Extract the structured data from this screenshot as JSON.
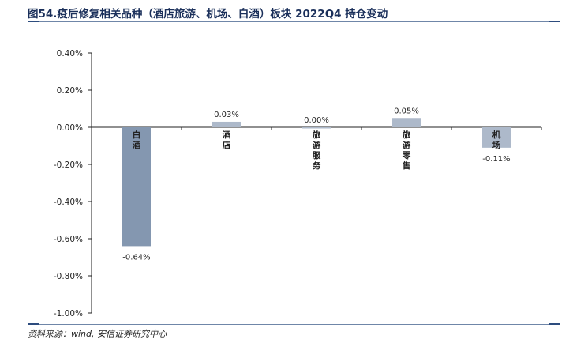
{
  "title": "图54.疫后修复相关品种（酒店旅游、机场、白酒）板块 2022Q4 持仓变动",
  "source": "资料来源：wind, 安信证券研究中心",
  "colors": {
    "dark_bar": "#8497b0",
    "light_bar": "#adb9ca",
    "header_line": "#2d4c7e"
  },
  "chart_data": {
    "type": "bar",
    "title": "疫后修复相关品种（酒店旅游、机场、白酒）板块 2022Q4 持仓变动",
    "xlabel": "",
    "ylabel": "",
    "categories": [
      "白酒",
      "酒店",
      "旅游服务",
      "旅游零售",
      "机场"
    ],
    "values": [
      -0.64,
      0.03,
      0.0,
      0.05,
      -0.11
    ],
    "value_labels": [
      "-0.64%",
      "0.03%",
      "0.00%",
      "0.05%",
      "-0.11%"
    ],
    "ylim": [
      -1.0,
      0.4
    ],
    "yticks": [
      0.4,
      0.2,
      0.0,
      -0.2,
      -0.4,
      -0.6,
      -0.8,
      -1.0
    ],
    "ytick_labels": [
      "0.40%",
      "0.20%",
      "0.00%",
      "-0.20%",
      "-0.40%",
      "-0.60%",
      "-0.80%",
      "-1.00%"
    ],
    "grid": false,
    "legend": "none"
  }
}
